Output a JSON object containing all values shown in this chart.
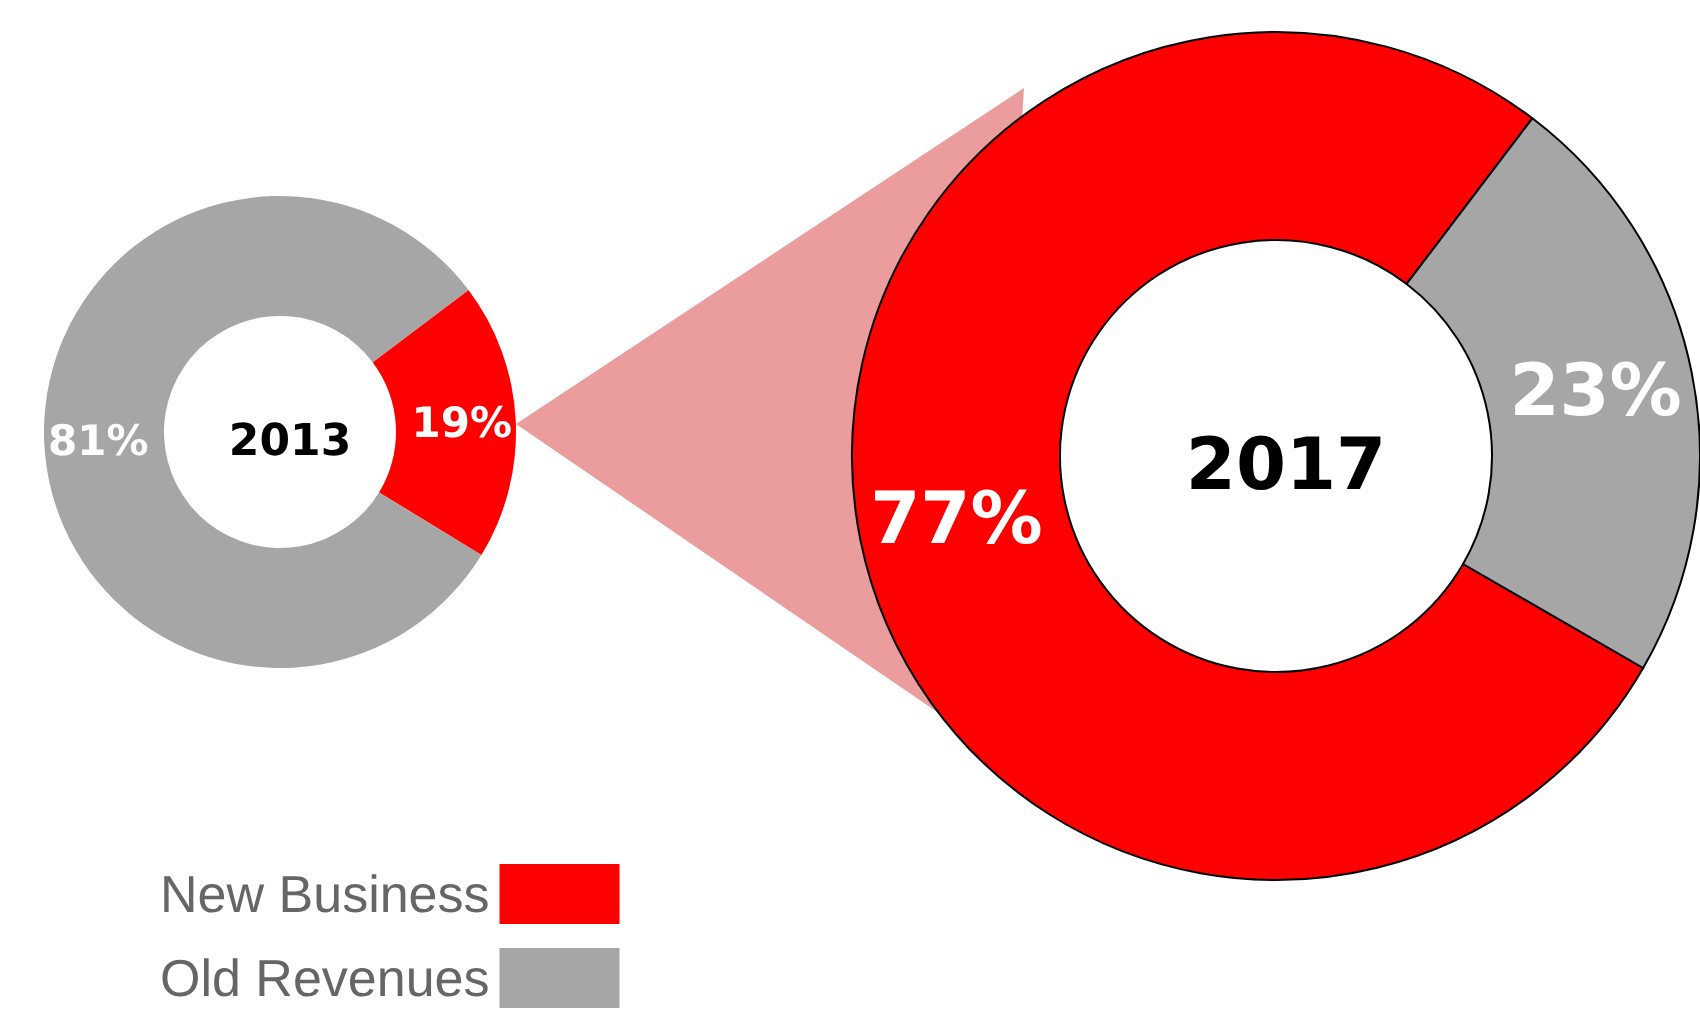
{
  "chart_data": {
    "type": "donut",
    "categories": [
      "New Business",
      "Old Revenues"
    ],
    "colors": [
      "#ff0000",
      "#a6a6a6"
    ],
    "legend": "bottom left",
    "series": [
      {
        "name": "2013",
        "values": [
          19,
          81
        ],
        "value_labels": [
          "19%",
          "81%"
        ]
      },
      {
        "name": "2017",
        "values": [
          77,
          23
        ],
        "value_labels": [
          "77%",
          "23%"
        ]
      }
    ]
  }
}
